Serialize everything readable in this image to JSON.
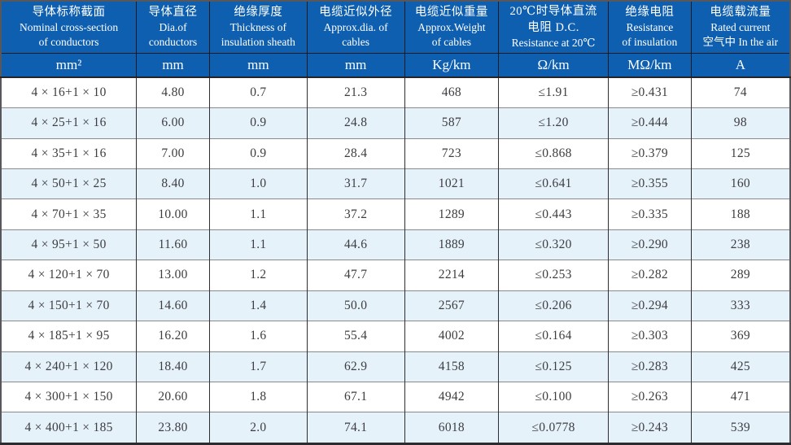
{
  "table": {
    "columns": [
      {
        "lines": [
          "导体标称截面",
          "Nominal cross-section",
          "of conductors"
        ],
        "unit": "mm²"
      },
      {
        "lines": [
          "导体直径",
          "Dia.of",
          "conductors"
        ],
        "unit": "mm"
      },
      {
        "lines": [
          "绝缘厚度",
          "Thickness of",
          "insulation sheath"
        ],
        "unit": "mm"
      },
      {
        "lines": [
          "电缆近似外径",
          "Approx.dia. of",
          "cables"
        ],
        "unit": "mm"
      },
      {
        "lines": [
          "电缆近似重量",
          "Approx.Weight",
          "of cables"
        ],
        "unit": "Kg/km"
      },
      {
        "lines": [
          "20℃时导体直流",
          "电阻 D.C.",
          "Resistance at 20℃"
        ],
        "unit": "Ω/km"
      },
      {
        "lines": [
          "绝缘电阻",
          "Resistance",
          "of insulation"
        ],
        "unit": "MΩ/km"
      },
      {
        "lines": [
          "电缆载流量",
          "Rated current",
          "空气中 In the air"
        ],
        "unit": "A"
      }
    ],
    "rows": [
      [
        "4 × 16+1 × 10",
        "4.80",
        "0.7",
        "21.3",
        "468",
        "≤1.91",
        "≥0.431",
        "74"
      ],
      [
        "4 × 25+1 × 16",
        "6.00",
        "0.9",
        "24.8",
        "587",
        "≤1.20",
        "≥0.444",
        "98"
      ],
      [
        "4 × 35+1 × 16",
        "7.00",
        "0.9",
        "28.4",
        "723",
        "≤0.868",
        "≥0.379",
        "125"
      ],
      [
        "4 × 50+1 × 25",
        "8.40",
        "1.0",
        "31.7",
        "1021",
        "≤0.641",
        "≥0.355",
        "160"
      ],
      [
        "4 × 70+1 × 35",
        "10.00",
        "1.1",
        "37.2",
        "1289",
        "≤0.443",
        "≥0.335",
        "188"
      ],
      [
        "4 × 95+1 × 50",
        "11.60",
        "1.1",
        "44.6",
        "1889",
        "≤0.320",
        "≥0.290",
        "238"
      ],
      [
        "4 × 120+1 × 70",
        "13.00",
        "1.2",
        "47.7",
        "2214",
        "≤0.253",
        "≥0.282",
        "289"
      ],
      [
        "4 × 150+1 × 70",
        "14.60",
        "1.4",
        "50.0",
        "2567",
        "≤0.206",
        "≥0.294",
        "333"
      ],
      [
        "4 × 185+1 × 95",
        "16.20",
        "1.6",
        "55.4",
        "4002",
        "≤0.164",
        "≥0.303",
        "369"
      ],
      [
        "4 × 240+1 × 120",
        "18.40",
        "1.7",
        "62.9",
        "4158",
        "≤0.125",
        "≥0.283",
        "425"
      ],
      [
        "4 × 300+1 × 150",
        "20.60",
        "1.8",
        "67.1",
        "4942",
        "≤0.100",
        "≥0.263",
        "471"
      ],
      [
        "4 × 400+1 × 185",
        "23.80",
        "2.0",
        "74.1",
        "6018",
        "≤0.0778",
        "≥0.243",
        "539"
      ]
    ]
  },
  "colors": {
    "header_bg": "#0e5fb0",
    "header_text": "#ffffff",
    "row_alt_bg": "#e6f2fa",
    "row_bg": "#ffffff",
    "data_text": "#3d3d41",
    "grid_vertical": "#2e2e32",
    "grid_horizontal": "#8a8a8e"
  }
}
